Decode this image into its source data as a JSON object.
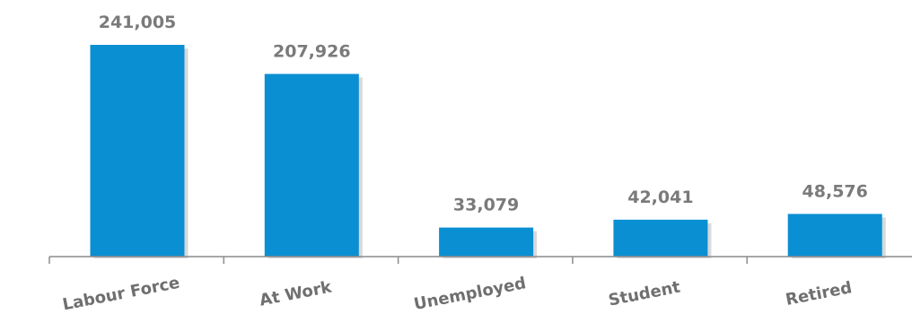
{
  "chart_data": {
    "type": "bar",
    "categories": [
      "Labour Force",
      "At Work",
      "Unemployed",
      "Student",
      "Retired"
    ],
    "values": [
      241005,
      207926,
      33079,
      42041,
      48576
    ],
    "value_labels": [
      "241,005",
      "207,926",
      "33,079",
      "42,041",
      "48,576"
    ],
    "title": "",
    "xlabel": "",
    "ylabel": "",
    "ylim": [
      0,
      241005
    ],
    "grid": false,
    "legend": "none",
    "colors": {
      "bar": "#0a8fd3",
      "bar_shadow": "#c9c9c9",
      "text": "#7a7a7a",
      "axis": "#8c8c8c"
    }
  }
}
